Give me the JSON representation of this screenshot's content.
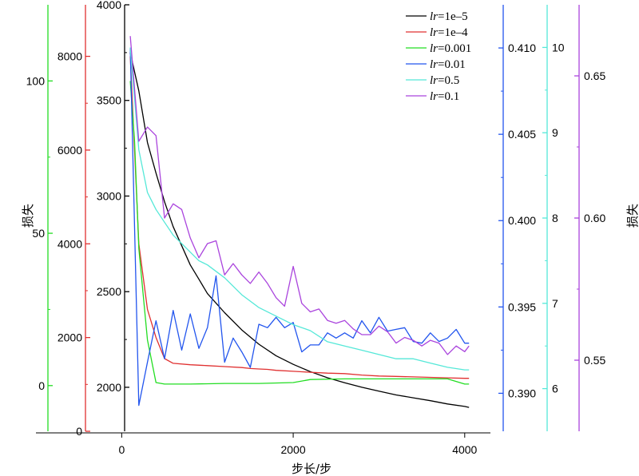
{
  "chart_data": {
    "type": "line",
    "xlabel": "步长/步",
    "ylabel_left": "损失",
    "ylabel_right": "损失",
    "legend_position": "top-right",
    "legend_prefix": "lr",
    "x_ticks": [
      0,
      2000,
      4000
    ],
    "x_range": [
      -1000,
      4300
    ],
    "axes": [
      {
        "id": "green",
        "color": "#22dd22",
        "range": [
          -15,
          125
        ],
        "ticks": [
          0,
          50,
          100
        ],
        "labels": [
          "0",
          "50",
          "100"
        ],
        "side": "left"
      },
      {
        "id": "red",
        "color": "#e03030",
        "range": [
          0,
          9100
        ],
        "ticks": [
          0,
          2000,
          4000,
          6000,
          8000
        ],
        "labels": [
          "0",
          "2000",
          "4000",
          "6000",
          "8000"
        ],
        "side": "left"
      },
      {
        "id": "black",
        "color": "#000000",
        "range": [
          1770,
          4000
        ],
        "ticks": [
          2000,
          2500,
          3000,
          3500,
          4000
        ],
        "labels": [
          "2000",
          "2500",
          "3000",
          "3500",
          "4000"
        ],
        "side": "left"
      },
      {
        "id": "blue",
        "color": "#2255ee",
        "range": [
          0.3878,
          0.4125
        ],
        "ticks": [
          0.39,
          0.395,
          0.4,
          0.405,
          0.41
        ],
        "labels": [
          "0.390",
          "0.395",
          "0.400",
          "0.405",
          "0.410"
        ],
        "side": "right"
      },
      {
        "id": "cyan",
        "color": "#55e8d8",
        "range": [
          5.5,
          10.5
        ],
        "ticks": [
          6,
          7,
          8,
          9,
          10
        ],
        "labels": [
          "6",
          "7",
          "8",
          "9",
          "10"
        ],
        "side": "right"
      },
      {
        "id": "purple",
        "color": "#aa44dd",
        "range": [
          0.525,
          0.675
        ],
        "ticks": [
          0.55,
          0.6,
          0.65
        ],
        "labels": [
          "0.55",
          "0.60",
          "0.65"
        ],
        "side": "right"
      }
    ],
    "series": [
      {
        "name": "=1e–5",
        "axis": "black",
        "color": "#000000",
        "x": [
          100,
          200,
          300,
          400,
          500,
          600,
          700,
          800,
          900,
          1000,
          1200,
          1400,
          1600,
          1800,
          2000,
          2200,
          2400,
          2600,
          2800,
          3000,
          3200,
          3400,
          3600,
          3800,
          4000,
          4050
        ],
        "y": [
          3750,
          3550,
          3280,
          3120,
          2970,
          2840,
          2740,
          2640,
          2565,
          2490,
          2390,
          2300,
          2225,
          2165,
          2120,
          2082,
          2050,
          2024,
          2000,
          1980,
          1960,
          1945,
          1930,
          1913,
          1900,
          1895
        ]
      },
      {
        "name": "=1e–4",
        "axis": "red",
        "color": "#e03030",
        "x": [
          100,
          200,
          300,
          400,
          500,
          600,
          800,
          1000,
          1200,
          1400,
          1500,
          1600,
          1700,
          1800,
          2000,
          2200,
          2400,
          2600,
          2800,
          3000,
          3200,
          3400,
          3600,
          3800,
          4000,
          4050
        ],
        "y": [
          8000,
          4000,
          2600,
          2000,
          1550,
          1450,
          1420,
          1400,
          1380,
          1360,
          1340,
          1330,
          1320,
          1300,
          1280,
          1260,
          1240,
          1230,
          1200,
          1180,
          1170,
          1160,
          1150,
          1140,
          1130,
          1130
        ]
      },
      {
        "name": "=0.001",
        "axis": "green",
        "color": "#22dd22",
        "x": [
          100,
          150,
          200,
          300,
          400,
          500,
          800,
          1200,
          1600,
          2000,
          2200,
          2600,
          3000,
          3400,
          3800,
          4000,
          4050
        ],
        "y": [
          100,
          80,
          45,
          15,
          1,
          0.5,
          0.5,
          0.7,
          0.7,
          1,
          2,
          2.2,
          2.2,
          2.2,
          2.2,
          0.5,
          0.5
        ]
      },
      {
        "name": "=0.01",
        "axis": "blue",
        "color": "#2255ee",
        "x": [
          100,
          200,
          300,
          400,
          500,
          600,
          700,
          800,
          900,
          1000,
          1100,
          1200,
          1300,
          1400,
          1500,
          1600,
          1700,
          1800,
          1900,
          2000,
          2100,
          2200,
          2300,
          2400,
          2500,
          2600,
          2700,
          2800,
          2900,
          3000,
          3100,
          3200,
          3300,
          3400,
          3500,
          3600,
          3700,
          3800,
          3900,
          4000,
          4050
        ],
        "y": [
          0.41,
          0.3893,
          0.3918,
          0.3942,
          0.392,
          0.3948,
          0.3925,
          0.3946,
          0.3926,
          0.3938,
          0.3968,
          0.3918,
          0.3932,
          0.3924,
          0.3915,
          0.394,
          0.3938,
          0.3944,
          0.3938,
          0.3941,
          0.3924,
          0.3928,
          0.3928,
          0.3935,
          0.3932,
          0.3935,
          0.3932,
          0.3942,
          0.3935,
          0.3944,
          0.3936,
          0.3937,
          0.3938,
          0.393,
          0.3929,
          0.3935,
          0.393,
          0.3932,
          0.3937,
          0.3929,
          0.3929
        ]
      },
      {
        "name": "=0.5",
        "axis": "cyan",
        "color": "#55e8d8",
        "x": [
          100,
          200,
          300,
          400,
          500,
          600,
          700,
          800,
          900,
          1000,
          1200,
          1400,
          1600,
          1800,
          2000,
          2200,
          2400,
          2600,
          2800,
          3000,
          3200,
          3400,
          3600,
          3800,
          4000,
          4050
        ],
        "y": [
          10,
          8.8,
          8.3,
          8.1,
          7.95,
          7.8,
          7.7,
          7.6,
          7.5,
          7.45,
          7.3,
          7.1,
          6.95,
          6.85,
          6.75,
          6.68,
          6.55,
          6.5,
          6.45,
          6.4,
          6.35,
          6.35,
          6.3,
          6.25,
          6.22,
          6.22
        ]
      },
      {
        "name": "=0.1",
        "axis": "purple",
        "color": "#aa44dd",
        "x": [
          100,
          200,
          300,
          400,
          500,
          600,
          700,
          800,
          900,
          1000,
          1100,
          1200,
          1300,
          1400,
          1500,
          1600,
          1700,
          1800,
          1900,
          2000,
          2100,
          2200,
          2300,
          2400,
          2500,
          2600,
          2700,
          2800,
          2900,
          3000,
          3100,
          3200,
          3300,
          3400,
          3500,
          3600,
          3700,
          3800,
          3900,
          4000,
          4050
        ],
        "y": [
          0.664,
          0.627,
          0.632,
          0.629,
          0.6,
          0.605,
          0.603,
          0.593,
          0.586,
          0.591,
          0.592,
          0.58,
          0.584,
          0.58,
          0.577,
          0.581,
          0.577,
          0.572,
          0.569,
          0.583,
          0.57,
          0.567,
          0.568,
          0.564,
          0.563,
          0.564,
          0.561,
          0.559,
          0.559,
          0.562,
          0.56,
          0.556,
          0.558,
          0.557,
          0.555,
          0.557,
          0.556,
          0.552,
          0.555,
          0.553,
          0.555
        ]
      }
    ]
  }
}
